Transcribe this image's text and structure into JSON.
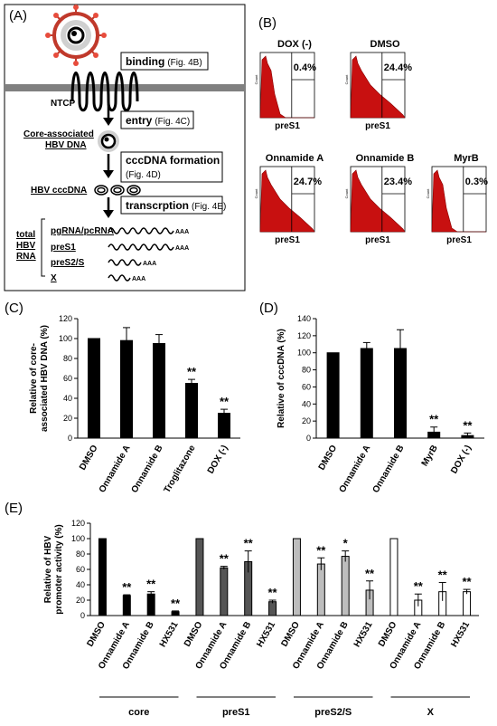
{
  "panelA": {
    "letter": "(A)",
    "binding": "binding",
    "binding_ref": "(Fig. 4B)",
    "ntcp": "NTCP",
    "entry": "entry",
    "entry_ref": "(Fig. 4C)",
    "core_label_1": "Core-associated",
    "core_label_2": "HBV DNA",
    "ccc_formation": "cccDNA formation",
    "ccc_formation_ref": "(Fig. 4D)",
    "hbv_cccdna": "HBV cccDNA",
    "transcription": "transcrption",
    "transcription_ref": "(Fig. 4E)",
    "total_1": "total",
    "total_2": "HBV",
    "total_3": "RNA",
    "rnas": [
      {
        "name": "pgRNA/pcRNA",
        "tail": "AAA"
      },
      {
        "name": "preS1",
        "tail": "AAA"
      },
      {
        "name": "preS2/S",
        "tail": "AAA"
      },
      {
        "name": "X",
        "tail": "AAA"
      }
    ]
  },
  "panelB": {
    "letter": "(B)",
    "xlabel": "preS1",
    "ylabel": "Count",
    "histograms": [
      {
        "title": "DOX (-)",
        "value": "0.4%"
      },
      {
        "title": "DMSO",
        "value": "24.4%"
      },
      {
        "title": "Onnamide A",
        "value": "24.7%"
      },
      {
        "title": "Onnamide B",
        "value": "23.4%"
      },
      {
        "title": "MyrB",
        "value": "0.3%"
      }
    ]
  },
  "chart_data": [
    {
      "panel": "(C)",
      "type": "bar",
      "ylabel": "Relative of core-associated HBV DNA (%)",
      "ylabel_lines": [
        "Relative of core-",
        "associated HBV DNA (%)"
      ],
      "ylim": [
        0,
        120
      ],
      "yticks": [
        0,
        20,
        40,
        60,
        80,
        100,
        120
      ],
      "categories": [
        "DMSO",
        "Onnamide A",
        "Onnamide B",
        "Troglitazone",
        "DOX (-)"
      ],
      "values": [
        100,
        98,
        95,
        55,
        25
      ],
      "errors": [
        0,
        13,
        9,
        4,
        4
      ],
      "significance": [
        "",
        "",
        "",
        "**",
        "**"
      ],
      "color": "#000000"
    },
    {
      "panel": "(D)",
      "type": "bar",
      "ylabel": "Relative of cccDNA (%)",
      "ylim": [
        0,
        140
      ],
      "yticks": [
        0,
        20,
        40,
        60,
        80,
        100,
        120,
        140
      ],
      "categories": [
        "DMSO",
        "Onnamide A",
        "Onnamide B",
        "MyrB",
        "DOX (-)"
      ],
      "values": [
        100,
        105,
        105,
        7,
        3
      ],
      "errors": [
        0,
        7,
        22,
        6,
        3
      ],
      "significance": [
        "",
        "",
        "",
        "**",
        "**"
      ],
      "color": "#000000"
    },
    {
      "panel": "(E)",
      "type": "bar",
      "ylabel": "Relative of HBV promoter activity (%)",
      "ylabel_lines": [
        "Relative of HBV",
        "promoter activity (%)"
      ],
      "ylim": [
        0,
        120
      ],
      "yticks": [
        0,
        20,
        40,
        60,
        80,
        100,
        120
      ],
      "categories": [
        "DMSO",
        "Onnamide A",
        "Onnamide B",
        "HX531"
      ],
      "series": [
        {
          "name": "core",
          "values": [
            100,
            26,
            28,
            5
          ],
          "errors": [
            0,
            1,
            3,
            1
          ],
          "significance": [
            "",
            "**",
            "**",
            "**"
          ],
          "color": "#000000"
        },
        {
          "name": "preS1",
          "values": [
            100,
            62,
            70,
            18
          ],
          "errors": [
            0,
            2,
            14,
            2
          ],
          "significance": [
            "",
            "**",
            "**",
            "**"
          ],
          "color": "#555555"
        },
        {
          "name": "preS2/S",
          "values": [
            100,
            67,
            77,
            33
          ],
          "errors": [
            0,
            8,
            7,
            12
          ],
          "significance": [
            "",
            "**",
            "*",
            "**"
          ],
          "color": "#bdbdbd"
        },
        {
          "name": "X",
          "values": [
            100,
            20,
            31,
            31
          ],
          "errors": [
            0,
            8,
            12,
            3
          ],
          "significance": [
            "",
            "**",
            "**",
            "**"
          ],
          "color": "#ffffff"
        }
      ]
    }
  ]
}
